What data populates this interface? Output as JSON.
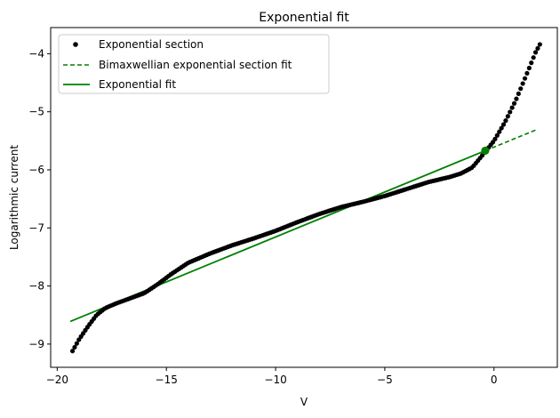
{
  "chart_data": {
    "type": "scatter",
    "title": "Exponential fit",
    "xlabel": "V",
    "ylabel": "Logarithmic current",
    "xlim": [
      -20.3,
      2.9
    ],
    "ylim": [
      -9.4,
      -3.55
    ],
    "xticks": [
      -20,
      -15,
      -10,
      -5,
      0
    ],
    "yticks": [
      -9,
      -8,
      -7,
      -6,
      -5,
      -4
    ],
    "xtick_labels": [
      "−20",
      "−15",
      "−10",
      "−5",
      "0"
    ],
    "ytick_labels": [
      "−9",
      "−8",
      "−7",
      "−6",
      "−5",
      "−4"
    ],
    "grid": false,
    "legend_position": "top-left",
    "colors": {
      "points": "#000000",
      "fit": "#008000",
      "frame": "#000000"
    },
    "series": [
      {
        "name": "Exponential section",
        "style": "points",
        "curve": [
          [
            -19.3,
            -9.12
          ],
          [
            -19.0,
            -8.92
          ],
          [
            -18.6,
            -8.7
          ],
          [
            -18.2,
            -8.5
          ],
          [
            -17.8,
            -8.38
          ],
          [
            -17.3,
            -8.3
          ],
          [
            -16.5,
            -8.19
          ],
          [
            -16.0,
            -8.12
          ],
          [
            -15.4,
            -7.97
          ],
          [
            -14.8,
            -7.8
          ],
          [
            -14.0,
            -7.6
          ],
          [
            -13.0,
            -7.44
          ],
          [
            -12.0,
            -7.3
          ],
          [
            -11.0,
            -7.18
          ],
          [
            -10.0,
            -7.05
          ],
          [
            -9.0,
            -6.9
          ],
          [
            -8.0,
            -6.76
          ],
          [
            -7.0,
            -6.64
          ],
          [
            -6.0,
            -6.55
          ],
          [
            -5.0,
            -6.45
          ],
          [
            -4.0,
            -6.33
          ],
          [
            -3.0,
            -6.21
          ],
          [
            -2.0,
            -6.12
          ],
          [
            -1.5,
            -6.06
          ],
          [
            -1.0,
            -5.96
          ],
          [
            -0.6,
            -5.78
          ],
          [
            -0.3,
            -5.64
          ],
          [
            0.0,
            -5.5
          ],
          [
            0.5,
            -5.18
          ],
          [
            1.0,
            -4.8
          ],
          [
            1.5,
            -4.35
          ],
          [
            1.9,
            -3.98
          ],
          [
            2.1,
            -3.84
          ]
        ],
        "n_points": 220
      },
      {
        "name": "Bimaxwellian exponential section fit",
        "style": "dashed",
        "points": [
          [
            -0.4,
            -5.67
          ],
          [
            2.0,
            -5.3
          ]
        ]
      },
      {
        "name": "Exponential fit",
        "style": "solid",
        "points": [
          [
            -19.4,
            -8.61
          ],
          [
            -0.4,
            -5.67
          ]
        ]
      }
    ],
    "marker": {
      "x": -0.4,
      "y": -5.67
    }
  }
}
